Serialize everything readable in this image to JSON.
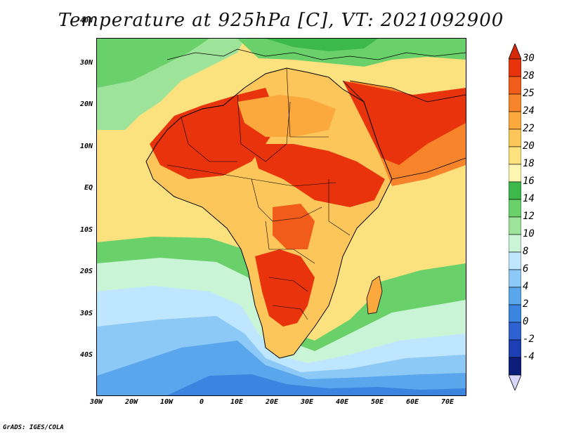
{
  "title": "Temperature at 925hPa [C], VT: 2021092900",
  "credit": "GrADS: IGES/COLA",
  "lat_ticks": [
    "40N",
    "30N",
    "20N",
    "10N",
    "EQ",
    "10S",
    "20S",
    "30S",
    "40S"
  ],
  "lon_ticks": [
    "30W",
    "20W",
    "10W",
    "0",
    "10E",
    "20E",
    "30E",
    "40E",
    "50E",
    "60E",
    "70E"
  ],
  "colorbar": {
    "labels": [
      "30",
      "28",
      "25",
      "24",
      "22",
      "20",
      "18",
      "16",
      "14",
      "12",
      "10",
      "8",
      "6",
      "4",
      "2",
      "0",
      "-2",
      "-4"
    ],
    "colors": [
      "#e8330c",
      "#f25c1a",
      "#f7842a",
      "#fba83d",
      "#fcc65a",
      "#fbe27e",
      "#fdf5b2",
      "#3db84a",
      "#6ad06a",
      "#9ee39a",
      "#c9f5d6",
      "#bfe6ff",
      "#8cc9f6",
      "#5aa6ec",
      "#3b84df",
      "#2d62d0",
      "#1e3fb4",
      "#0c1e7a"
    ],
    "top_arrow": "#d6290a",
    "bottom_arrow": "#d8d6fa"
  },
  "colors": {
    "ocean_cool": "#8cc9f6",
    "ocean_mid": "#9ee39a",
    "land_hot": "#e8330c"
  }
}
